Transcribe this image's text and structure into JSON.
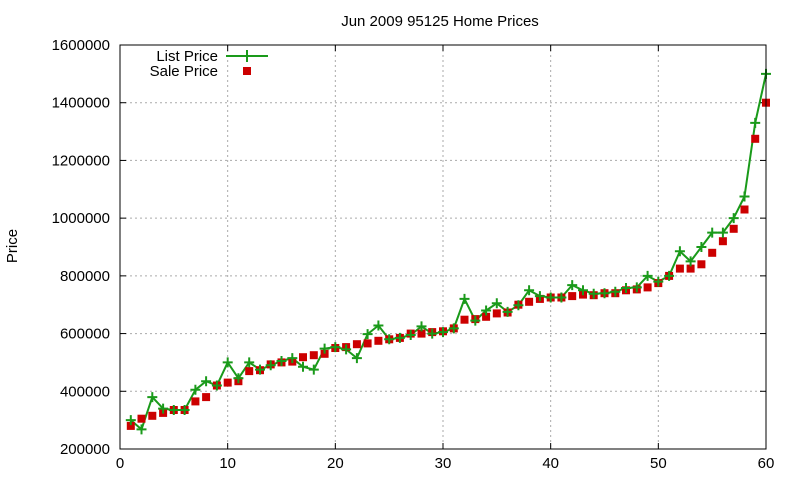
{
  "chart_data": {
    "type": "line",
    "title": "Jun 2009 95125 Home Prices",
    "xlabel": "",
    "ylabel": "Price",
    "xlim": [
      0,
      60
    ],
    "ylim": [
      200000,
      1600000
    ],
    "xticks": [
      0,
      10,
      20,
      30,
      40,
      50,
      60
    ],
    "yticks": [
      200000,
      400000,
      600000,
      800000,
      1000000,
      1200000,
      1400000,
      1600000
    ],
    "grid": true,
    "legend_position": "top-left",
    "series": [
      {
        "name": "List Price",
        "style": "line-with-plus-markers",
        "color": "#1a9a1a",
        "x": [
          1,
          2,
          3,
          4,
          5,
          6,
          7,
          8,
          9,
          10,
          11,
          12,
          13,
          14,
          15,
          16,
          17,
          18,
          19,
          20,
          21,
          22,
          23,
          24,
          25,
          26,
          27,
          28,
          29,
          30,
          31,
          32,
          33,
          34,
          35,
          36,
          37,
          38,
          39,
          40,
          41,
          42,
          43,
          44,
          45,
          46,
          47,
          48,
          49,
          50,
          51,
          52,
          53,
          54,
          55,
          56,
          57,
          58,
          59,
          60
        ],
        "y": [
          300000,
          268000,
          380000,
          340000,
          335000,
          335000,
          405000,
          435000,
          420000,
          500000,
          445000,
          500000,
          475000,
          490000,
          505000,
          515000,
          485000,
          475000,
          548000,
          553000,
          545000,
          515000,
          598000,
          628000,
          580000,
          585000,
          595000,
          625000,
          600000,
          605000,
          618000,
          720000,
          645000,
          680000,
          705000,
          675000,
          698000,
          750000,
          730000,
          725000,
          725000,
          768000,
          750000,
          738000,
          740000,
          745000,
          758000,
          760000,
          800000,
          780000,
          800000,
          885000,
          850000,
          900000,
          950000,
          950000,
          1000000,
          1075000,
          1330000,
          1500000
        ]
      },
      {
        "name": "Sale Price",
        "style": "square-markers",
        "color": "#cc0000",
        "x": [
          1,
          2,
          3,
          4,
          5,
          6,
          7,
          8,
          9,
          10,
          11,
          12,
          13,
          14,
          15,
          16,
          17,
          18,
          19,
          20,
          21,
          22,
          23,
          24,
          25,
          26,
          27,
          28,
          29,
          30,
          31,
          32,
          33,
          34,
          35,
          36,
          37,
          38,
          39,
          40,
          41,
          42,
          43,
          44,
          45,
          46,
          47,
          48,
          49,
          50,
          51,
          52,
          53,
          54,
          55,
          56,
          57,
          58,
          59,
          60
        ],
        "y": [
          280000,
          305000,
          315000,
          325000,
          335000,
          335000,
          365000,
          380000,
          420000,
          430000,
          435000,
          470000,
          473000,
          493000,
          500000,
          503000,
          518000,
          525000,
          530000,
          550000,
          553000,
          563000,
          566000,
          575000,
          580000,
          585000,
          600000,
          600000,
          605000,
          608000,
          618000,
          648000,
          650000,
          658000,
          670000,
          673000,
          700000,
          710000,
          720000,
          725000,
          725000,
          730000,
          735000,
          733000,
          740000,
          740000,
          750000,
          753000,
          760000,
          775000,
          800000,
          825000,
          825000,
          840000,
          880000,
          920000,
          963000,
          1030000,
          1275000,
          1400000
        ]
      }
    ]
  }
}
